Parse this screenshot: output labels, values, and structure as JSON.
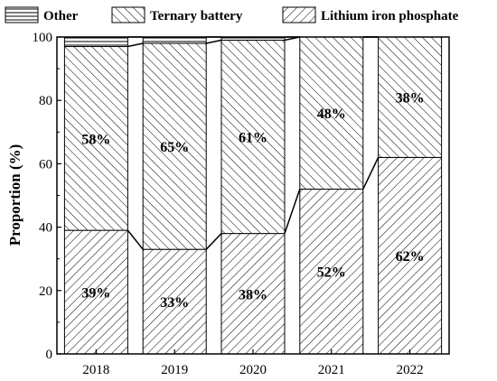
{
  "chart_data": {
    "type": "bar",
    "stacked": true,
    "categories": [
      "2018",
      "2019",
      "2020",
      "2021",
      "2022"
    ],
    "series": [
      {
        "name": "Lithium iron phosphate",
        "values": [
          39,
          33,
          38,
          52,
          62
        ],
        "labels": [
          "39%",
          "33%",
          "38%",
          "52%",
          "62%"
        ],
        "pattern": "forward-diagonal"
      },
      {
        "name": "Ternary battery",
        "values": [
          58,
          65,
          61,
          48,
          38
        ],
        "labels": [
          "58%",
          "65%",
          "61%",
          "48%",
          "38%"
        ],
        "pattern": "back-diagonal"
      },
      {
        "name": "Other",
        "values": [
          3,
          2,
          1,
          0,
          0
        ],
        "labels": [
          "",
          "",
          "",
          "",
          ""
        ],
        "pattern": "horizontal"
      }
    ],
    "xlabel": "",
    "ylabel": "Proportion (%)",
    "ylim": [
      0,
      100
    ],
    "yticks": [
      0,
      20,
      40,
      60,
      80,
      100
    ],
    "grid": false,
    "legend_placement": "top",
    "connector_lines": true
  }
}
